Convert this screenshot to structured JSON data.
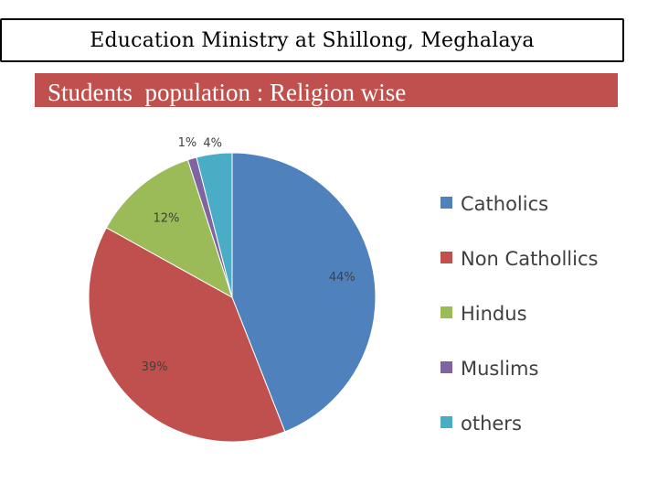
{
  "header": {
    "title": "Education Ministry at Shillong, Meghalaya",
    "subtitle": "Students  population : Religion wise"
  },
  "chart_data": {
    "type": "pie",
    "slices": [
      {
        "label": "Catholics",
        "value": 44,
        "display": "44%",
        "color": "#4f81bd"
      },
      {
        "label": " Non Cathollics",
        "value": 39,
        "display": "39%",
        "color": "#c0504d"
      },
      {
        "label": "Hindus",
        "value": 12,
        "display": "12%",
        "color": "#9bbb59"
      },
      {
        "label": "Muslims",
        "value": 1,
        "display": "1%",
        "color": "#8064a2"
      },
      {
        "label": "others",
        "value": 4,
        "display": "4%",
        "color": "#4bacc6"
      }
    ],
    "legend_position": "right"
  }
}
